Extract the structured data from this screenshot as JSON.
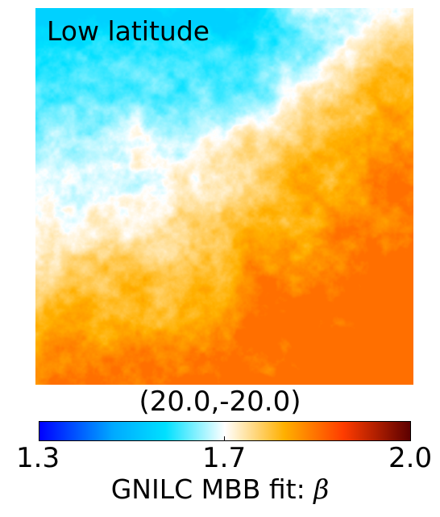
{
  "figure": {
    "panel_label": "Low latitude",
    "coordinates_label": "(20.0,-20.0)"
  },
  "colorbar": {
    "min_label": "1.3",
    "mid_label": "1.7",
    "max_label": "2.0",
    "min": 1.3,
    "mid": 1.7,
    "max": 2.0,
    "title_text": "GNILC MBB fit: ",
    "title_symbol": "β",
    "colors": [
      "#0000ff",
      "#00aaff",
      "#00e0ff",
      "#ffffff",
      "#ffb000",
      "#ff3c00",
      "#5c0000"
    ]
  }
}
